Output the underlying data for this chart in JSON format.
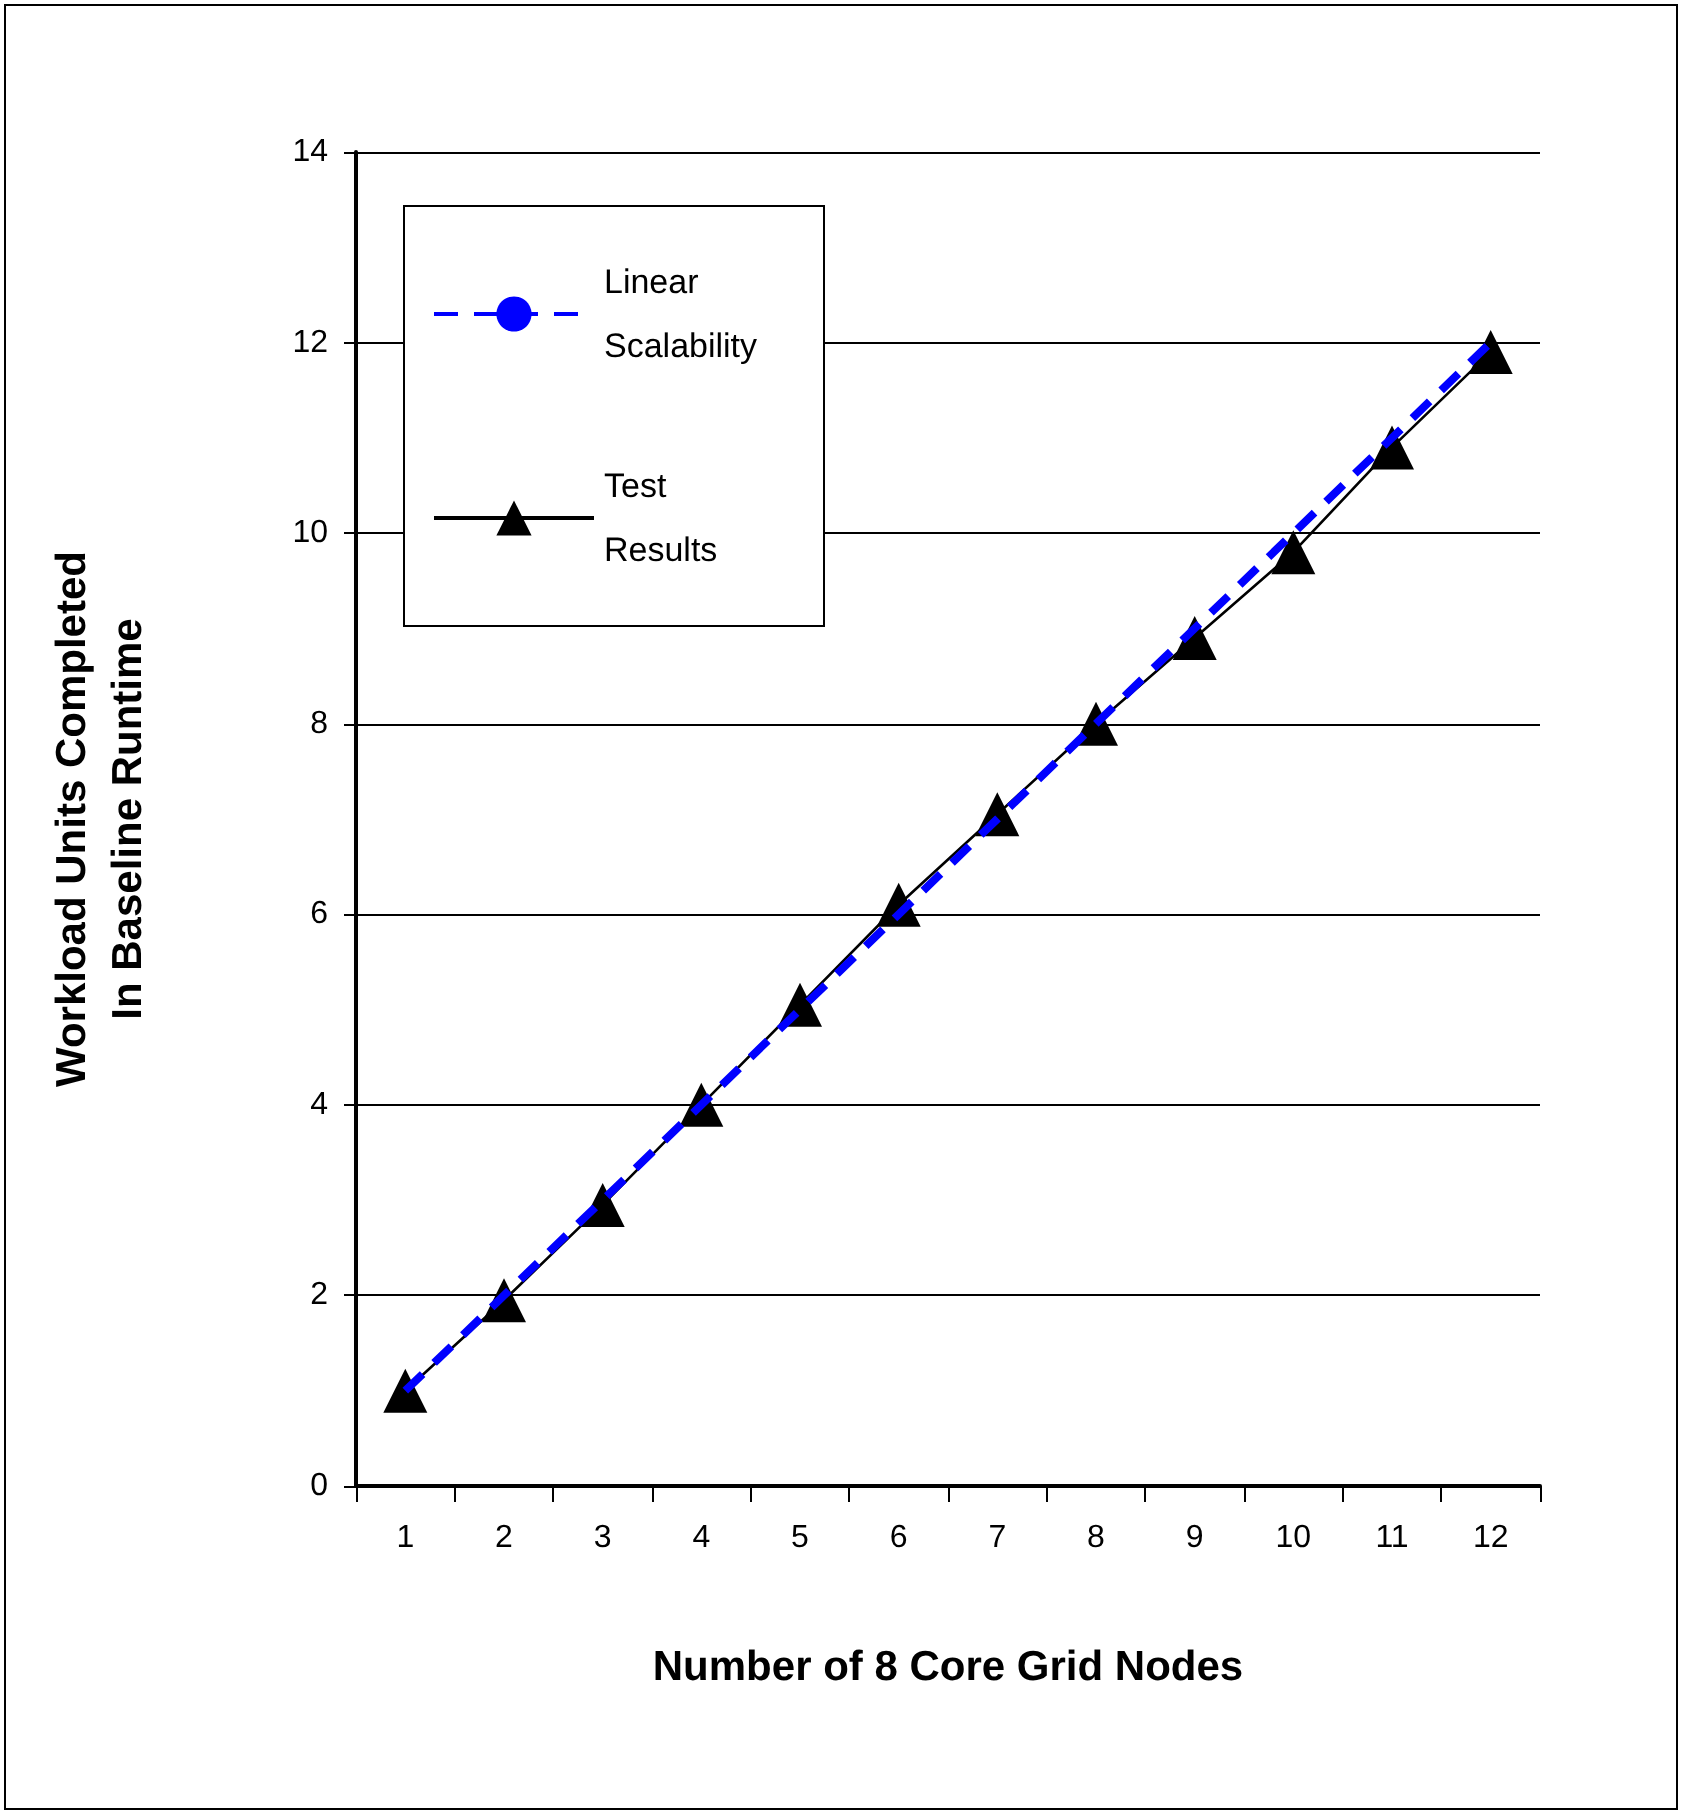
{
  "chart_data": {
    "type": "line",
    "xlabel": "Number of 8 Core Grid Nodes",
    "ylabel": "Workload Units Completed\nIn Baseline Runtime",
    "categories": [
      "1",
      "2",
      "3",
      "4",
      "5",
      "6",
      "7",
      "8",
      "9",
      "10",
      "11",
      "12"
    ],
    "series": [
      {
        "name": "Linear Scalability",
        "color": "#0000ff",
        "line_style": "dashed",
        "marker": "none",
        "values": [
          1,
          2,
          3,
          4,
          5,
          6,
          7,
          8,
          9,
          10,
          11,
          12
        ]
      },
      {
        "name": "Test Results",
        "color": "#000000",
        "line_style": "solid",
        "marker": "triangle",
        "values": [
          1,
          1.95,
          2.95,
          4.0,
          5.05,
          6.1,
          7.05,
          8.0,
          8.9,
          9.8,
          10.9,
          11.9
        ]
      }
    ],
    "ylim": [
      0,
      14
    ],
    "yticks": [
      0,
      2,
      4,
      6,
      8,
      10,
      12,
      14
    ],
    "grid": "y",
    "legend": "top left"
  }
}
